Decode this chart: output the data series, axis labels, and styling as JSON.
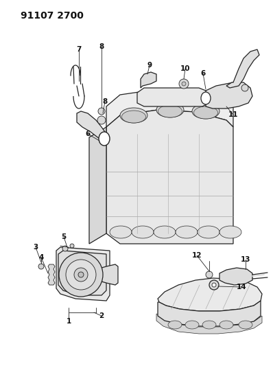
{
  "title": "91107 2700",
  "bg_color": "#ffffff",
  "line_color": "#222222",
  "label_color": "#111111",
  "title_fontsize": 10,
  "label_fontsize": 7.5,
  "figsize": [
    3.98,
    5.33
  ],
  "dpi": 100
}
